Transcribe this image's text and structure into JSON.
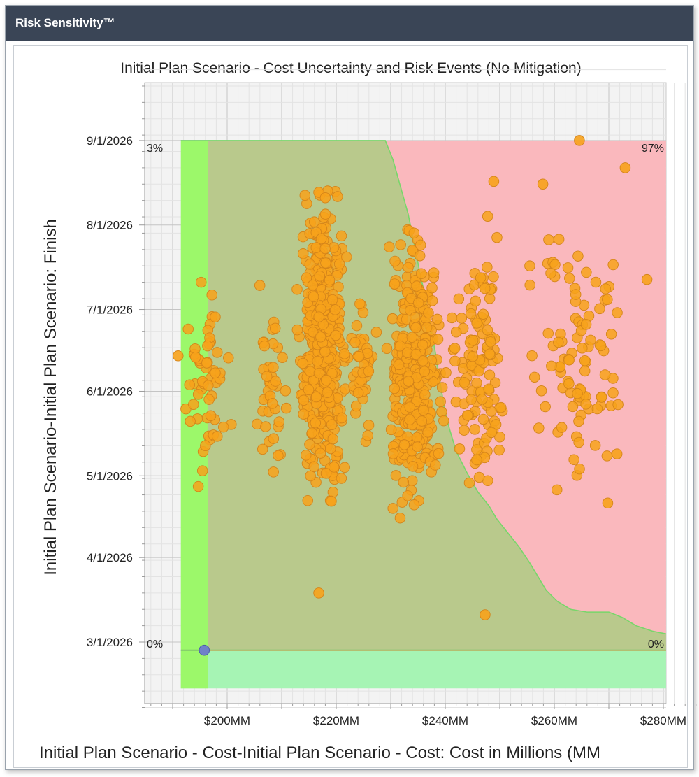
{
  "window": {
    "title": "Risk Sensitivity™"
  },
  "chart_data": {
    "type": "scatter",
    "title": "Initial Plan Scenario - Cost Uncertainty and Risk Events (No Mitigation)",
    "xlabel": "Initial Plan Scenario - Cost-Initial Plan Scenario - Cost: Cost in Millions (MM",
    "ylabel": "Initial Plan Scenario-Initial Plan Scenario: Finish",
    "x_unit": "MM",
    "xlim": [
      186,
      286
    ],
    "ylim": [
      "2026-02-02",
      "2026-10-01"
    ],
    "x_ticks": [
      {
        "value": 200,
        "label": "$200MM"
      },
      {
        "value": 220,
        "label": "$220MM"
      },
      {
        "value": 240,
        "label": "$240MM"
      },
      {
        "value": 260,
        "label": "$260MM"
      },
      {
        "value": 280,
        "label": "$280MM"
      }
    ],
    "y_ticks": [
      {
        "value": "2026-03-01",
        "label": "3/1/2026"
      },
      {
        "value": "2026-04-01",
        "label": "4/1/2026"
      },
      {
        "value": "2026-05-01",
        "label": "5/1/2026"
      },
      {
        "value": "2026-06-01",
        "label": "6/1/2026"
      },
      {
        "value": "2026-07-01",
        "label": "7/1/2026"
      },
      {
        "value": "2026-08-01",
        "label": "8/1/2026"
      },
      {
        "value": "2026-09-01",
        "label": "9/1/2026"
      }
    ],
    "grid": true,
    "percentile_labels": {
      "top_left": "3%",
      "top_right": "97%",
      "bottom_left": "0%",
      "bottom_right": "0%"
    },
    "regions": {
      "cost_band": {
        "x": [
          191.5,
          196.5
        ],
        "y": [
          "2026-02-12",
          "2026-09-01"
        ],
        "color": "#9cf86a"
      },
      "bottom_band": {
        "x": [
          191.5,
          280.5
        ],
        "y": [
          "2026-02-12",
          "2026-02-26"
        ],
        "color": "#a6f4b4"
      },
      "underperform_region": {
        "color": "#b9c98c"
      },
      "overrun_region": {
        "color": "#fab8bd"
      },
      "boundary_line": {
        "color": "#78d66a"
      },
      "overrun_boundary": [
        [
          "2026-09-01",
          229.0
        ],
        [
          "2026-08-25",
          230.4
        ],
        [
          "2026-08-15",
          231.8
        ],
        [
          "2026-08-05",
          233.2
        ],
        [
          "2026-07-25",
          234.3
        ],
        [
          "2026-07-15",
          235.3
        ],
        [
          "2026-07-05",
          236.4
        ],
        [
          "2026-06-25",
          237.3
        ],
        [
          "2026-06-15",
          238.2
        ],
        [
          "2026-06-05",
          239.0
        ],
        [
          "2026-05-25",
          239.9
        ],
        [
          "2026-05-18",
          240.8
        ],
        [
          "2026-05-10",
          242.0
        ],
        [
          "2026-05-02",
          244.0
        ],
        [
          "2026-04-25",
          246.0
        ],
        [
          "2026-04-20",
          248.0
        ],
        [
          "2026-04-15",
          249.5
        ],
        [
          "2026-04-10",
          251.5
        ],
        [
          "2026-04-05",
          253.5
        ],
        [
          "2026-03-30",
          255.5
        ],
        [
          "2026-03-25",
          257.0
        ],
        [
          "2026-03-20",
          258.5
        ],
        [
          "2026-03-16",
          260.5
        ],
        [
          "2026-03-13",
          263.0
        ],
        [
          "2026-03-12",
          266.0
        ],
        [
          "2026-03-12",
          270.0
        ],
        [
          "2026-03-10",
          272.5
        ],
        [
          "2026-03-07",
          275.0
        ],
        [
          "2026-03-05",
          278.0
        ],
        [
          "2026-03-04",
          280.5
        ]
      ]
    },
    "baseline_point": {
      "x": 195.8,
      "y": "2026-02-26",
      "color": "#6f82c8"
    },
    "point_color": "#f7a21b",
    "clusters": [
      {
        "x_range": [
          191,
          202
        ],
        "y_range": [
          "2026-04-14",
          "2026-07-31"
        ],
        "count": 55
      },
      {
        "x_range": [
          204,
          212
        ],
        "y_range": [
          "2026-04-14",
          "2026-07-31"
        ],
        "count": 40
      },
      {
        "x_range": [
          212,
          223
        ],
        "y_range": [
          "2026-04-11",
          "2026-08-25"
        ],
        "count": 430
      },
      {
        "x_range": [
          222,
          228
        ],
        "y_range": [
          "2026-05-05",
          "2026-07-20"
        ],
        "count": 45
      },
      {
        "x_range": [
          228,
          241
        ],
        "y_range": [
          "2026-04-04",
          "2026-08-09"
        ],
        "count": 340
      },
      {
        "x_range": [
          240,
          252
        ],
        "y_range": [
          "2026-04-14",
          "2026-08-15"
        ],
        "count": 120
      },
      {
        "x_range": [
          252,
          276
        ],
        "y_range": [
          "2026-04-14",
          "2026-08-15"
        ],
        "count": 95
      }
    ],
    "points": [
      {
        "x": 264.6,
        "y": "2026-09-01"
      },
      {
        "x": 273.0,
        "y": "2026-08-22"
      },
      {
        "x": 248.9,
        "y": "2026-08-17"
      },
      {
        "x": 257.9,
        "y": "2026-08-16"
      },
      {
        "x": 216.8,
        "y": "2026-08-13"
      },
      {
        "x": 218.0,
        "y": "2026-08-11"
      },
      {
        "x": 277.0,
        "y": "2026-07-12"
      },
      {
        "x": 216.8,
        "y": "2026-03-19"
      },
      {
        "x": 247.3,
        "y": "2026-03-11"
      },
      {
        "x": 191.0,
        "y": "2026-06-14"
      },
      {
        "x": 271.5,
        "y": "2026-05-09"
      },
      {
        "x": 269.8,
        "y": "2026-04-21"
      }
    ]
  }
}
